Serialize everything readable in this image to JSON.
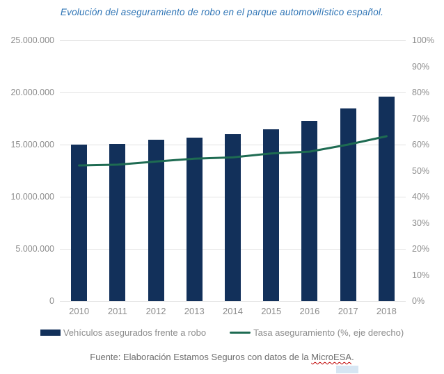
{
  "title": "Evolución del aseguramiento de robo en el parque automovilístico español.",
  "colors": {
    "bar": "#12305a",
    "line": "#1e6b52",
    "title_text": "#2e74b5",
    "axis_text": "#8c8c8c",
    "gridline": "#e2e2e2",
    "footer_text": "#6e6e6e",
    "spellcheck_underline": "#c00000"
  },
  "chart_data": {
    "type": "bar+line combo",
    "title": "Evolución del aseguramiento de robo en el parque automovilístico español.",
    "categories": [
      "2010",
      "2011",
      "2012",
      "2013",
      "2014",
      "2015",
      "2016",
      "2017",
      "2018"
    ],
    "series": [
      {
        "name": "Vehículos asegurados frente a robo",
        "type": "bar",
        "axis": "left",
        "values": [
          15000000,
          15100000,
          15500000,
          15700000,
          16000000,
          16500000,
          17300000,
          18500000,
          19600000
        ]
      },
      {
        "name": "Tasa aseguramiento (%, eje derecho)",
        "type": "line",
        "axis": "right",
        "values": [
          52.0,
          52.3,
          53.5,
          54.6,
          55.1,
          56.6,
          57.3,
          60.0,
          63.2
        ]
      }
    ],
    "left_axis": {
      "min": 0,
      "max": 25000000,
      "tick_step": 5000000,
      "ticks": [
        "0",
        "5.000.000",
        "10.000.000",
        "15.000.000",
        "20.000.000",
        "25.000.000"
      ]
    },
    "right_axis": {
      "min": 0,
      "max": 100,
      "tick_step": 10,
      "ticks": [
        "0%",
        "10%",
        "20%",
        "30%",
        "40%",
        "50%",
        "60%",
        "70%",
        "80%",
        "90%",
        "100%"
      ]
    },
    "grid": "horizontal gridlines at every 5.000.000 (every 20%)",
    "legend_position": "bottom"
  },
  "legend": {
    "bar_label": "Vehículos asegurados frente a robo",
    "line_label": "Tasa aseguramiento (%, eje derecho)"
  },
  "footer": {
    "prefix": "Fuente: Elaboración Estamos Seguros con datos de la ",
    "flagged_word": "MicroESA",
    "suffix": "."
  }
}
